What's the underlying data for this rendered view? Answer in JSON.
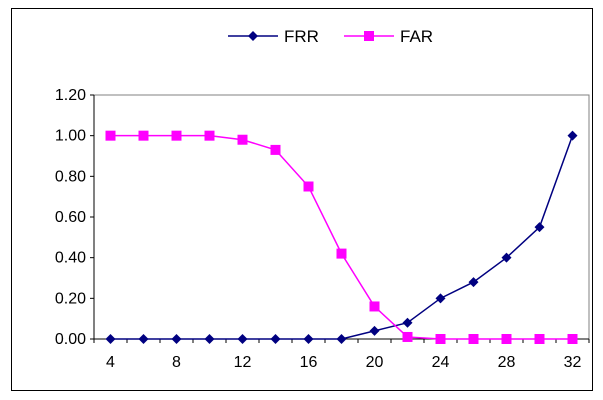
{
  "chart_data": {
    "type": "line",
    "title": "",
    "xlabel": "",
    "ylabel": "",
    "x": [
      4,
      6,
      8,
      10,
      12,
      14,
      16,
      18,
      20,
      22,
      24,
      26,
      28,
      30,
      32
    ],
    "x_tick_labels": [
      "4",
      "8",
      "12",
      "16",
      "20",
      "24",
      "28",
      "32"
    ],
    "x_tick_values": [
      4,
      8,
      12,
      16,
      20,
      24,
      28,
      32
    ],
    "y_tick_labels": [
      "0.00",
      "0.20",
      "0.40",
      "0.60",
      "0.80",
      "1.00",
      "1.20"
    ],
    "y_tick_values": [
      0,
      0.2,
      0.4,
      0.6,
      0.8,
      1.0,
      1.2
    ],
    "xlim": [
      3,
      33
    ],
    "ylim": [
      0,
      1.2
    ],
    "grid": false,
    "legend_position": "top-center",
    "series": [
      {
        "name": "FRR",
        "color": "#000080",
        "marker": "diamond",
        "values": [
          0,
          0,
          0,
          0,
          0,
          0,
          0,
          0,
          0.04,
          0.08,
          0.2,
          0.28,
          0.4,
          0.55,
          1.0
        ]
      },
      {
        "name": "FAR",
        "color": "#FF00FF",
        "marker": "square",
        "values": [
          1.0,
          1.0,
          1.0,
          1.0,
          0.98,
          0.93,
          0.75,
          0.42,
          0.16,
          0.01,
          0.0,
          0.0,
          0.0,
          0.0,
          0.0
        ]
      }
    ]
  }
}
